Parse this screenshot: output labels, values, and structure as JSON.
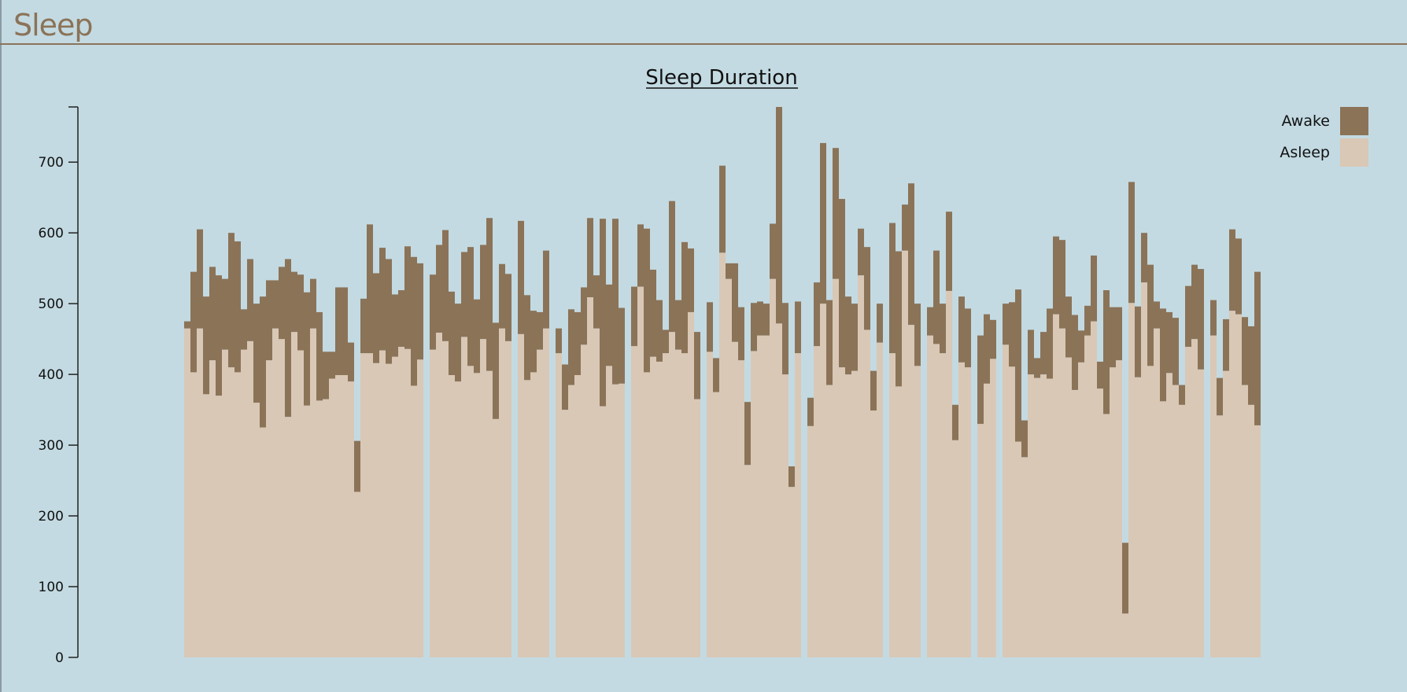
{
  "page": {
    "title": "Sleep"
  },
  "colors": {
    "awake": "#8b7358",
    "asleep": "#d9c8b6",
    "background": "#c3dae2",
    "axis": "#222222"
  },
  "chart_data": {
    "type": "bar",
    "stacked": true,
    "title": "Sleep Duration",
    "xlabel": "",
    "ylabel": "",
    "ylim": [
      0,
      778
    ],
    "yticks": [
      0,
      100,
      200,
      300,
      400,
      500,
      600,
      700
    ],
    "legend": {
      "position": "top-right",
      "entries": [
        "Awake",
        "Asleep"
      ]
    },
    "series": [
      {
        "name": "Asleep",
        "color": "#d9c8b6"
      },
      {
        "name": "Awake",
        "color": "#8b7358"
      }
    ],
    "bars": [
      [
        0,
        465,
        475
      ],
      [
        1,
        403,
        545
      ],
      [
        2,
        465,
        605
      ],
      [
        3,
        372,
        510
      ],
      [
        4,
        420,
        552
      ],
      [
        5,
        370,
        540
      ],
      [
        6,
        435,
        535
      ],
      [
        7,
        410,
        600
      ],
      [
        8,
        403,
        588
      ],
      [
        9,
        435,
        492
      ],
      [
        10,
        447,
        563
      ],
      [
        11,
        360,
        500
      ],
      [
        12,
        325,
        510
      ],
      [
        13,
        420,
        533
      ],
      [
        14,
        465,
        533
      ],
      [
        15,
        450,
        552
      ],
      [
        16,
        340,
        563
      ],
      [
        17,
        460,
        545
      ],
      [
        18,
        434,
        541
      ],
      [
        19,
        356,
        516
      ],
      [
        20,
        465,
        535
      ],
      [
        21,
        363,
        488
      ],
      [
        22,
        365,
        432
      ],
      [
        23,
        394,
        432
      ],
      [
        24,
        399,
        523
      ],
      [
        25,
        399,
        523
      ],
      [
        26,
        390,
        445
      ],
      [
        27,
        234,
        306
      ],
      [
        28,
        430,
        507
      ],
      [
        29,
        430,
        612
      ],
      [
        30,
        416,
        543
      ],
      [
        31,
        434,
        579
      ],
      [
        32,
        415,
        563
      ],
      [
        33,
        425,
        513
      ],
      [
        34,
        439,
        519
      ],
      [
        35,
        436,
        581
      ],
      [
        36,
        384,
        566
      ],
      [
        37,
        421,
        557
      ],
      [
        39,
        435,
        541
      ],
      [
        40,
        459,
        583
      ],
      [
        41,
        447,
        604
      ],
      [
        42,
        399,
        517
      ],
      [
        43,
        390,
        500
      ],
      [
        44,
        453,
        573
      ],
      [
        45,
        412,
        580
      ],
      [
        46,
        402,
        506
      ],
      [
        47,
        450,
        583
      ],
      [
        48,
        405,
        621
      ],
      [
        49,
        337,
        473
      ],
      [
        50,
        465,
        556
      ],
      [
        51,
        447,
        542
      ],
      [
        53,
        457,
        617
      ],
      [
        54,
        392,
        512
      ],
      [
        55,
        403,
        490
      ],
      [
        56,
        435,
        488
      ],
      [
        57,
        465,
        575
      ],
      [
        59,
        430,
        465
      ],
      [
        60,
        350,
        414
      ],
      [
        61,
        385,
        492
      ],
      [
        62,
        399,
        488
      ],
      [
        63,
        442,
        523
      ],
      [
        64,
        509,
        621
      ],
      [
        65,
        465,
        540
      ],
      [
        66,
        355,
        620
      ],
      [
        67,
        412,
        527
      ],
      [
        68,
        386,
        620
      ],
      [
        69,
        387,
        494
      ],
      [
        71,
        440,
        524
      ],
      [
        72,
        524,
        612
      ],
      [
        73,
        403,
        606
      ],
      [
        74,
        425,
        548
      ],
      [
        75,
        418,
        505
      ],
      [
        76,
        430,
        463
      ],
      [
        77,
        460,
        645
      ],
      [
        78,
        435,
        505
      ],
      [
        79,
        430,
        587
      ],
      [
        80,
        488,
        578
      ],
      [
        81,
        365,
        460
      ],
      [
        83,
        432,
        502
      ],
      [
        84,
        375,
        423
      ],
      [
        85,
        572,
        695
      ],
      [
        86,
        535,
        557
      ],
      [
        87,
        446,
        557
      ],
      [
        88,
        420,
        495
      ],
      [
        89,
        272,
        361
      ],
      [
        90,
        433,
        501
      ],
      [
        91,
        455,
        503
      ],
      [
        92,
        455,
        500
      ],
      [
        93,
        535,
        613
      ],
      [
        94,
        472,
        778
      ],
      [
        95,
        400,
        501
      ],
      [
        96,
        241,
        270
      ],
      [
        97,
        430,
        503
      ],
      [
        99,
        327,
        367
      ],
      [
        100,
        440,
        530
      ],
      [
        101,
        500,
        727
      ],
      [
        102,
        385,
        505
      ],
      [
        103,
        535,
        720
      ],
      [
        104,
        410,
        648
      ],
      [
        105,
        400,
        510
      ],
      [
        106,
        405,
        500
      ],
      [
        107,
        540,
        606
      ],
      [
        108,
        463,
        580
      ],
      [
        109,
        349,
        405
      ],
      [
        110,
        445,
        500
      ],
      [
        112,
        430,
        614
      ],
      [
        113,
        383,
        574
      ],
      [
        114,
        575,
        640
      ],
      [
        115,
        470,
        670
      ],
      [
        116,
        412,
        500
      ],
      [
        118,
        455,
        495
      ],
      [
        119,
        443,
        575
      ],
      [
        120,
        430,
        500
      ],
      [
        121,
        518,
        630
      ],
      [
        122,
        307,
        357
      ],
      [
        123,
        417,
        510
      ],
      [
        124,
        410,
        493
      ],
      [
        126,
        330,
        455
      ],
      [
        127,
        387,
        485
      ],
      [
        128,
        422,
        477
      ],
      [
        130,
        442,
        500
      ],
      [
        131,
        411,
        502
      ],
      [
        132,
        305,
        520
      ],
      [
        133,
        283,
        335
      ],
      [
        134,
        400,
        463
      ],
      [
        135,
        395,
        423
      ],
      [
        136,
        400,
        460
      ],
      [
        137,
        394,
        493
      ],
      [
        138,
        485,
        595
      ],
      [
        139,
        465,
        590
      ],
      [
        140,
        424,
        510
      ],
      [
        141,
        378,
        484
      ],
      [
        142,
        417,
        462
      ],
      [
        143,
        455,
        497
      ],
      [
        144,
        475,
        568
      ],
      [
        145,
        380,
        418
      ],
      [
        146,
        344,
        519
      ],
      [
        147,
        410,
        495
      ],
      [
        148,
        420,
        495
      ],
      [
        149,
        62,
        162
      ],
      [
        150,
        501,
        672
      ],
      [
        151,
        396,
        496
      ],
      [
        152,
        530,
        600
      ],
      [
        153,
        412,
        555
      ],
      [
        154,
        465,
        503
      ],
      [
        155,
        362,
        493
      ],
      [
        156,
        402,
        488
      ],
      [
        157,
        385,
        480
      ],
      [
        158,
        357,
        385
      ],
      [
        159,
        439,
        525
      ],
      [
        160,
        450,
        555
      ],
      [
        161,
        407,
        549
      ],
      [
        163,
        455,
        505
      ],
      [
        164,
        342,
        395
      ],
      [
        165,
        405,
        478
      ],
      [
        166,
        490,
        605
      ],
      [
        167,
        485,
        592
      ],
      [
        168,
        385,
        481
      ],
      [
        169,
        357,
        468
      ],
      [
        170,
        328,
        545
      ]
    ]
  }
}
